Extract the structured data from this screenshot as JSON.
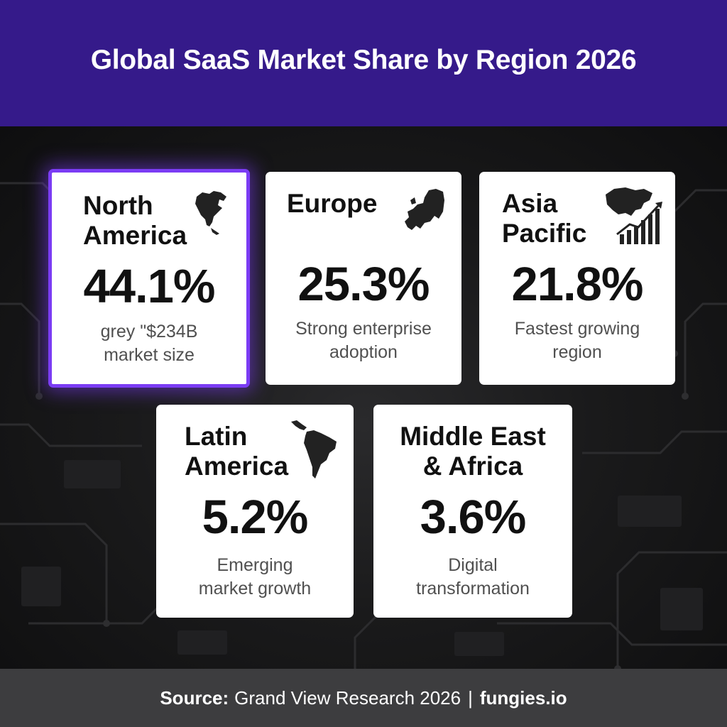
{
  "title": "Global SaaS Market Share by Region 2026",
  "regions": [
    {
      "name": "North America",
      "name_lines": [
        "North",
        "America"
      ],
      "percent": "44.1%",
      "desc_lines": [
        "grey \"$234B",
        "market size"
      ],
      "icon": "north-america-map-icon",
      "highlighted": true
    },
    {
      "name": "Europe",
      "name_lines": [
        "Europe"
      ],
      "percent": "25.3%",
      "desc_lines": [
        "Strong enterprise",
        "adoption"
      ],
      "icon": "europe-map-icon",
      "highlighted": false
    },
    {
      "name": "Asia Pacific",
      "name_lines": [
        "Asia",
        "Pacific"
      ],
      "percent": "21.8%",
      "desc_lines": [
        "Fastest growing",
        "region"
      ],
      "icon": "asia-growth-chart-icon",
      "highlighted": false
    },
    {
      "name": "Latin America",
      "name_lines": [
        "Latin",
        "America"
      ],
      "percent": "5.2%",
      "desc_lines": [
        "Emerging",
        "market growth"
      ],
      "icon": "south-america-map-icon",
      "highlighted": false
    },
    {
      "name": "Middle East & Africa",
      "name_lines": [
        "Middle East",
        "& Africa"
      ],
      "percent": "3.6%",
      "desc_lines": [
        "Digital",
        "transformation"
      ],
      "icon": "",
      "highlighted": false
    }
  ],
  "footer": {
    "source_label": "Source:",
    "source_text": "Grand View Research 2026",
    "separator": "|",
    "brand": "fungies.io"
  },
  "colors": {
    "header_bg": "#351a8a",
    "highlight_border": "#7b3cf4",
    "footer_bg": "#3d3d3f",
    "card_bg": "#ffffff"
  }
}
